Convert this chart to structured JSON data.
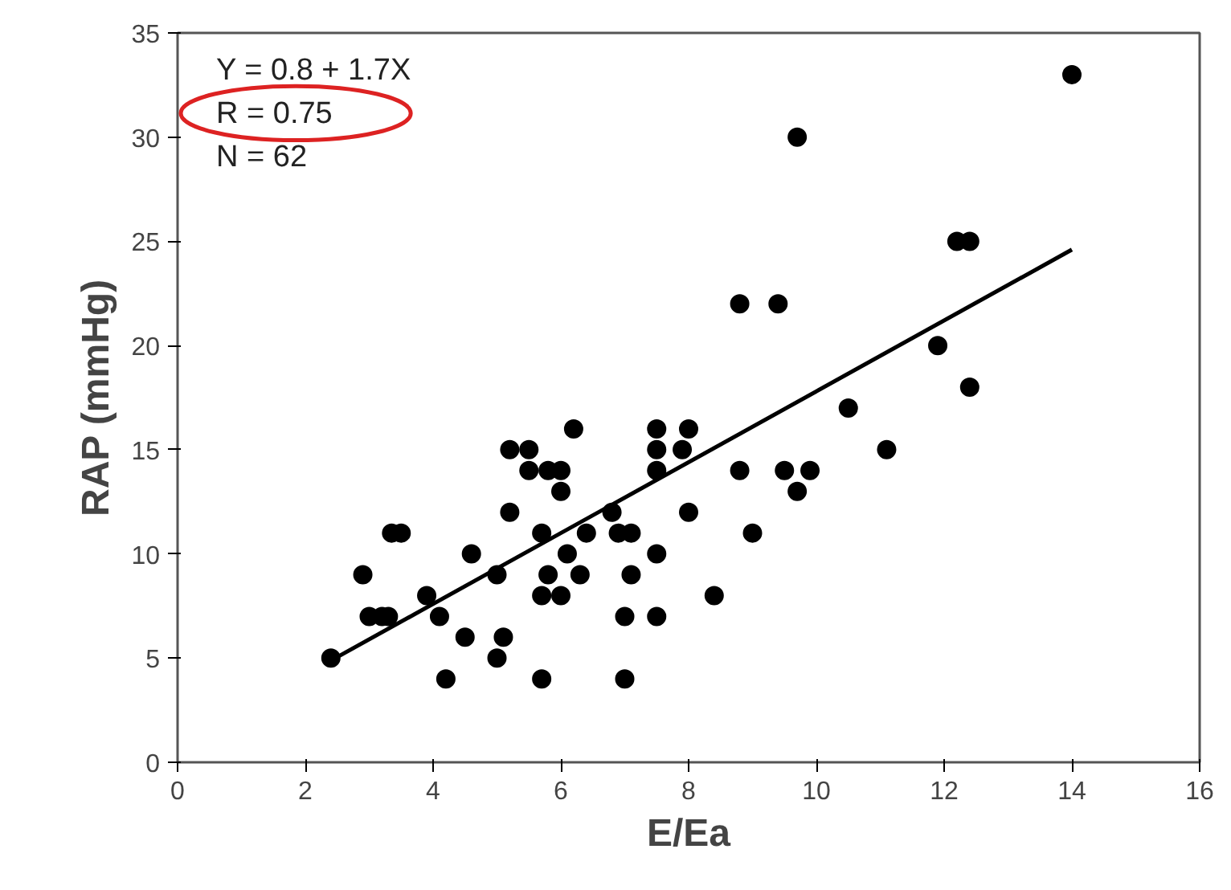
{
  "chart_data": {
    "type": "scatter",
    "xlabel": "E/Ea",
    "ylabel": "RAP (mmHg)",
    "xlim": [
      0,
      16
    ],
    "xticks": [
      0,
      2,
      4,
      6,
      8,
      10,
      12,
      14,
      16
    ],
    "ylim": [
      0,
      35
    ],
    "yticks": [
      0,
      5,
      10,
      15,
      20,
      25,
      30,
      35
    ],
    "marker": "circle",
    "annotations": [
      "Y = 0.8 + 1.7X",
      "R = 0.75",
      "N = 62"
    ],
    "series": [
      {
        "color": "#000000",
        "x": [
          2.4,
          2.9,
          3.0,
          3.2,
          3.3,
          3.35,
          3.5,
          3.9,
          4.1,
          4.2,
          4.5,
          4.6,
          5.0,
          5.1,
          5.0,
          5.2,
          5.2,
          5.7,
          5.5,
          5.5,
          5.8,
          6.0,
          6.2,
          6.0,
          5.7,
          5.8,
          5.7,
          6.0,
          6.1,
          6.3,
          6.4,
          6.8,
          6.9,
          7.1,
          7.1,
          7.0,
          7.0,
          7.5,
          7.5,
          7.5,
          7.5,
          7.5,
          8.0,
          7.9,
          8.0,
          8.4,
          8.8,
          9.4,
          8.8,
          9.0,
          9.5,
          9.9,
          9.7,
          9.7,
          14.0,
          12.2,
          12.4,
          11.9,
          12.4,
          10.5,
          11.1
        ],
        "values": [
          5,
          9,
          7,
          7,
          7,
          11,
          11,
          8,
          7,
          4,
          6,
          10,
          9,
          6,
          5,
          15,
          12,
          4,
          15,
          14,
          14,
          14,
          16,
          13,
          11,
          9,
          8,
          8,
          10,
          9,
          11,
          12,
          11,
          11,
          9,
          7,
          4,
          16,
          15,
          14,
          10,
          7,
          16,
          15,
          12,
          8,
          22,
          22,
          14,
          11,
          14,
          14,
          13,
          30,
          33,
          25,
          25,
          20,
          18,
          17,
          15
        ]
      },
      {
        "type": "line",
        "color": "#000000",
        "x": [
          2.4,
          14.0
        ],
        "values": [
          4.88,
          24.6
        ],
        "marker": "none",
        "line_style": "solid"
      }
    ]
  }
}
